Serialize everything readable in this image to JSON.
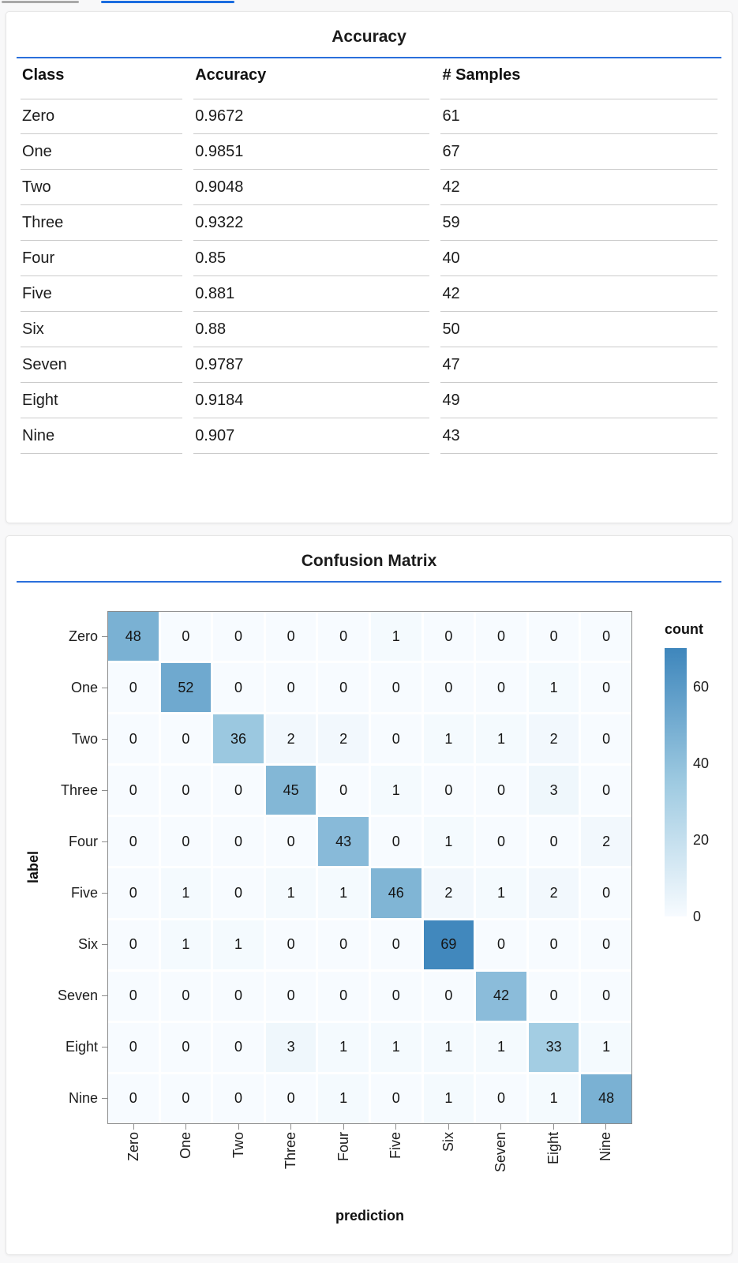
{
  "colors": {
    "accent_rule": "#2a6fdb",
    "tab_active": "#1a6ce0",
    "tab_inactive": "#a9a9a9",
    "heatmap_low": "#f7fbff",
    "heatmap_mid": "#9ecae1",
    "heatmap_high": "#3e86bc"
  },
  "accuracy_panel": {
    "title": "Accuracy",
    "table": {
      "columns": [
        "Class",
        "Accuracy",
        "# Samples"
      ],
      "rows": [
        {
          "class": "Zero",
          "accuracy": "0.9672",
          "samples": "61"
        },
        {
          "class": "One",
          "accuracy": "0.9851",
          "samples": "67"
        },
        {
          "class": "Two",
          "accuracy": "0.9048",
          "samples": "42"
        },
        {
          "class": "Three",
          "accuracy": "0.9322",
          "samples": "59"
        },
        {
          "class": "Four",
          "accuracy": "0.85",
          "samples": "40"
        },
        {
          "class": "Five",
          "accuracy": "0.881",
          "samples": "42"
        },
        {
          "class": "Six",
          "accuracy": "0.88",
          "samples": "50"
        },
        {
          "class": "Seven",
          "accuracy": "0.9787",
          "samples": "47"
        },
        {
          "class": "Eight",
          "accuracy": "0.9184",
          "samples": "49"
        },
        {
          "class": "Nine",
          "accuracy": "0.907",
          "samples": "43"
        }
      ]
    }
  },
  "confusion_panel": {
    "title": "Confusion Matrix"
  },
  "chart_data": {
    "type": "heatmap",
    "title": "Confusion Matrix",
    "xlabel": "prediction",
    "ylabel": "label",
    "x_categories": [
      "Zero",
      "One",
      "Two",
      "Three",
      "Four",
      "Five",
      "Six",
      "Seven",
      "Eight",
      "Nine"
    ],
    "y_categories": [
      "Zero",
      "One",
      "Two",
      "Three",
      "Four",
      "Five",
      "Six",
      "Seven",
      "Eight",
      "Nine"
    ],
    "matrix": [
      [
        48,
        0,
        0,
        0,
        0,
        1,
        0,
        0,
        0,
        0
      ],
      [
        0,
        52,
        0,
        0,
        0,
        0,
        0,
        0,
        1,
        0
      ],
      [
        0,
        0,
        36,
        2,
        2,
        0,
        1,
        1,
        2,
        0
      ],
      [
        0,
        0,
        0,
        45,
        0,
        1,
        0,
        0,
        3,
        0
      ],
      [
        0,
        0,
        0,
        0,
        43,
        0,
        1,
        0,
        0,
        2
      ],
      [
        0,
        1,
        0,
        1,
        1,
        46,
        2,
        1,
        2,
        0
      ],
      [
        0,
        1,
        1,
        0,
        0,
        0,
        69,
        0,
        0,
        0
      ],
      [
        0,
        0,
        0,
        0,
        0,
        0,
        0,
        42,
        0,
        0
      ],
      [
        0,
        0,
        0,
        3,
        1,
        1,
        1,
        1,
        33,
        1
      ],
      [
        0,
        0,
        0,
        0,
        1,
        0,
        1,
        0,
        1,
        48
      ]
    ],
    "legend": {
      "title": "count",
      "ticks": [
        60,
        40,
        20,
        0
      ],
      "domain": [
        0,
        70
      ]
    },
    "color_stops": [
      [
        0,
        "#f7fbff"
      ],
      [
        35,
        "#9ecae1"
      ],
      [
        70,
        "#3e86bc"
      ]
    ],
    "grid": false,
    "legend_position": "right"
  }
}
